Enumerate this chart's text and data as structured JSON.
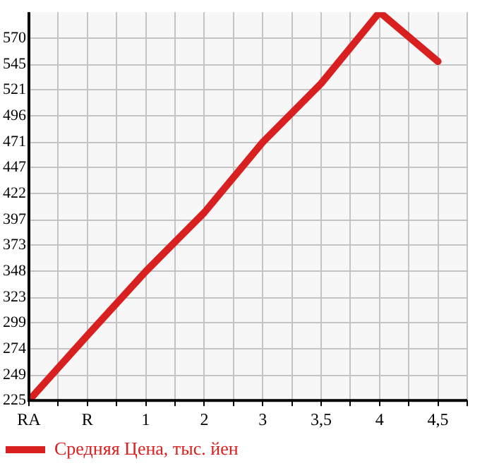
{
  "chart_data": {
    "type": "line",
    "categories": [
      "RA",
      "R",
      "1",
      "2",
      "3",
      "3,5",
      "4",
      "4,5"
    ],
    "series": [
      {
        "name": "Средняя Цена, тыс. йен",
        "color": "#d92020",
        "values": [
          225,
          287,
          348,
          404,
          471,
          527,
          595,
          548
        ]
      }
    ],
    "ylim": [
      225,
      595
    ],
    "yticks": [
      225,
      249,
      274,
      299,
      323,
      348,
      373,
      397,
      422,
      447,
      471,
      496,
      521,
      545,
      570
    ],
    "grid": true,
    "legend": "bottom left",
    "marker": "none",
    "line_style": "solid"
  }
}
